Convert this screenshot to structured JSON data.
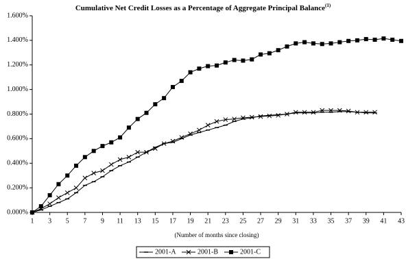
{
  "chart_data": {
    "type": "line",
    "title": "Cumulative Net Credit Losses as a Percentage of Aggregate Principal Balance",
    "title_superscript": "(1)",
    "x_label": "(Number of months since closing)",
    "x": [
      1,
      2,
      3,
      4,
      5,
      6,
      7,
      8,
      9,
      10,
      11,
      12,
      13,
      14,
      15,
      16,
      17,
      18,
      19,
      20,
      21,
      22,
      23,
      24,
      25,
      26,
      27,
      28,
      29,
      30,
      31,
      32,
      33,
      34,
      35,
      36,
      37,
      38,
      39,
      40,
      41,
      42,
      43
    ],
    "xlim": [
      1,
      43
    ],
    "xticks": [
      1,
      3,
      5,
      7,
      9,
      11,
      13,
      15,
      17,
      19,
      21,
      23,
      25,
      27,
      29,
      31,
      33,
      35,
      37,
      39,
      41,
      43
    ],
    "ylim": [
      0,
      1.6
    ],
    "yticks": [
      {
        "value": 0,
        "label": "0.000%"
      },
      {
        "value": 0.2,
        "label": "0.200%"
      },
      {
        "value": 0.4,
        "label": "0.400%"
      },
      {
        "value": 0.6,
        "label": "0.600%"
      },
      {
        "value": 0.8,
        "label": "0.800%"
      },
      {
        "value": 1.0,
        "label": "1.000%"
      },
      {
        "value": 1.2,
        "label": "1.200%"
      },
      {
        "value": 1.4,
        "label": "1.400%"
      },
      {
        "value": 1.6,
        "label": "1.600%"
      }
    ],
    "grid": false,
    "legend": "bottom",
    "series": [
      {
        "name": "2001-A",
        "color": "#000000",
        "marker": "dash",
        "values": [
          0,
          0.02,
          0.05,
          0.08,
          0.11,
          0.16,
          0.22,
          0.25,
          0.29,
          0.34,
          0.38,
          0.41,
          0.45,
          0.49,
          0.53,
          0.56,
          0.57,
          0.6,
          0.63,
          0.65,
          0.67,
          0.69,
          0.71,
          0.74,
          0.76,
          0.77,
          0.785,
          0.79,
          0.795,
          0.8,
          0.81,
          0.81,
          0.81,
          0.815,
          0.815,
          0.82,
          0.82,
          0.815,
          0.81,
          0.81,
          null,
          null,
          null
        ]
      },
      {
        "name": "2001-B",
        "color": "#000000",
        "marker": "x",
        "values": [
          0,
          0.03,
          0.07,
          0.12,
          0.16,
          0.2,
          0.28,
          0.32,
          0.34,
          0.39,
          0.43,
          0.45,
          0.49,
          0.49,
          0.52,
          0.56,
          0.58,
          0.61,
          0.64,
          0.67,
          0.71,
          0.74,
          0.755,
          0.76,
          0.77,
          0.775,
          0.78,
          0.785,
          0.79,
          0.8,
          0.815,
          0.815,
          0.815,
          0.83,
          0.83,
          0.83,
          0.825,
          0.815,
          0.815,
          0.815,
          null,
          null,
          null
        ]
      },
      {
        "name": "2001-C",
        "color": "#000000",
        "marker": "square",
        "values": [
          0,
          0.05,
          0.14,
          0.23,
          0.3,
          0.38,
          0.45,
          0.5,
          0.54,
          0.57,
          0.61,
          0.69,
          0.76,
          0.81,
          0.88,
          0.93,
          1.02,
          1.07,
          1.14,
          1.17,
          1.19,
          1.195,
          1.22,
          1.24,
          1.235,
          1.245,
          1.285,
          1.295,
          1.32,
          1.35,
          1.375,
          1.385,
          1.375,
          1.37,
          1.375,
          1.385,
          1.395,
          1.4,
          1.41,
          1.405,
          1.415,
          1.405,
          1.395
        ]
      }
    ]
  }
}
